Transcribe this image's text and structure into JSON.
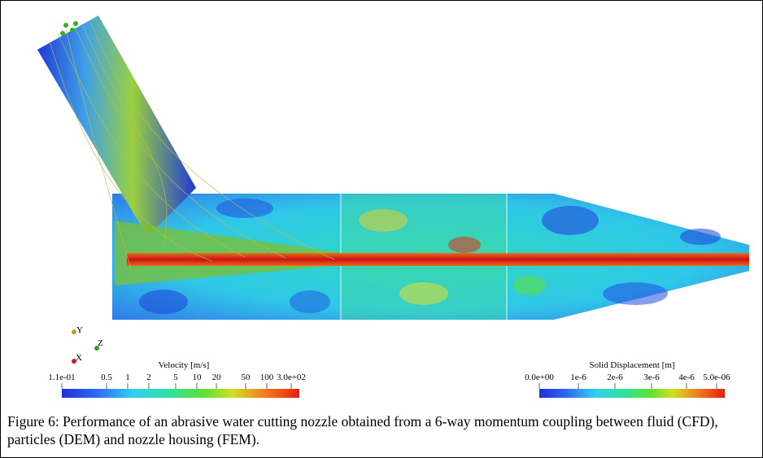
{
  "figure": {
    "axes_triad": [
      "Y",
      "Z",
      "X"
    ],
    "colorbars": [
      {
        "title": "Velocity [m/s]",
        "ticks": [
          "1.1e-01",
          "0.5",
          "1",
          "2",
          "5",
          "10",
          "20",
          "50",
          "100",
          "3.0e+02"
        ]
      },
      {
        "title": "Solid Displacement [m]",
        "ticks": [
          "0.0e+00",
          "1e-6",
          "2e-6",
          "3e-6",
          "4e-6",
          "5.0e-06"
        ]
      }
    ],
    "caption": "Figure 6: Performance of an abrasive water cutting nozzle obtained from a 6-way momentum coupling between fluid (CFD), particles (DEM) and nozzle housing (FEM)."
  }
}
